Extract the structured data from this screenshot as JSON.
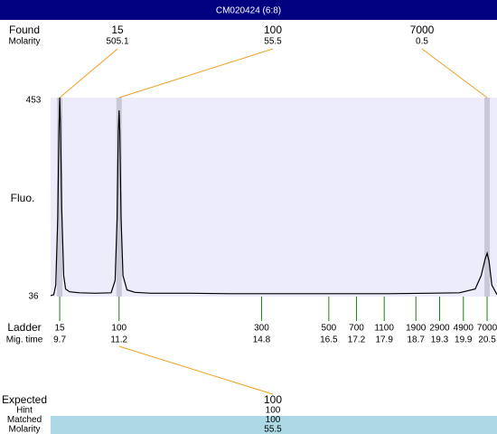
{
  "title": "CM020424 (6:8)",
  "chart_data": {
    "type": "line",
    "y_label": "Fluo.",
    "x": [
      9.47,
      9.55,
      9.6,
      9.65,
      9.68,
      9.7,
      9.72,
      9.75,
      9.8,
      9.85,
      9.95,
      10.2,
      10.6,
      11.0,
      11.1,
      11.15,
      11.18,
      11.2,
      11.22,
      11.25,
      11.3,
      11.4,
      11.6,
      12.0,
      13,
      14,
      15,
      16,
      17,
      18,
      19,
      19.8,
      20.2,
      20.35,
      20.45,
      20.5,
      20.55,
      20.62,
      20.75
    ],
    "values": [
      38,
      40,
      60,
      200,
      380,
      453,
      400,
      220,
      80,
      52,
      46,
      44,
      43,
      44,
      70,
      200,
      380,
      426,
      380,
      200,
      80,
      50,
      45,
      43,
      43,
      42,
      42,
      42,
      42,
      42,
      43,
      44,
      52,
      80,
      115,
      127,
      110,
      60,
      40
    ],
    "color": "#000000",
    "background": "#ececfa",
    "xlim": [
      9.47,
      20.75
    ],
    "ylim": [
      36,
      453
    ],
    "yticks": [
      36,
      453
    ]
  },
  "found": {
    "label": "Found",
    "sub_label": "Molarity",
    "band_color": "#c8c8d8",
    "link_color": "#f0a020",
    "peaks": [
      {
        "size": 15,
        "molarity": 505.1,
        "time": 9.7
      },
      {
        "size": 100,
        "molarity": 55.5,
        "time": 11.2
      },
      {
        "size": 7000,
        "molarity": 0.5,
        "time": 20.5
      }
    ]
  },
  "ladder": {
    "label": "Ladder",
    "sub_label": "Mig. time",
    "color": "#1a7a1a",
    "sizes": [
      15,
      100,
      300,
      500,
      700,
      1100,
      1900,
      2900,
      4900,
      7000
    ],
    "times": [
      9.7,
      11.2,
      14.8,
      16.5,
      17.2,
      17.9,
      18.7,
      19.3,
      19.9,
      20.5
    ]
  },
  "expected": {
    "label": "Expected",
    "value": 100,
    "highlight": "#add8e6",
    "rows": [
      {
        "label": "Hint",
        "value": 100
      },
      {
        "label": "Matched",
        "value": 100
      },
      {
        "label": "Molarity",
        "value": 55.5
      }
    ]
  }
}
